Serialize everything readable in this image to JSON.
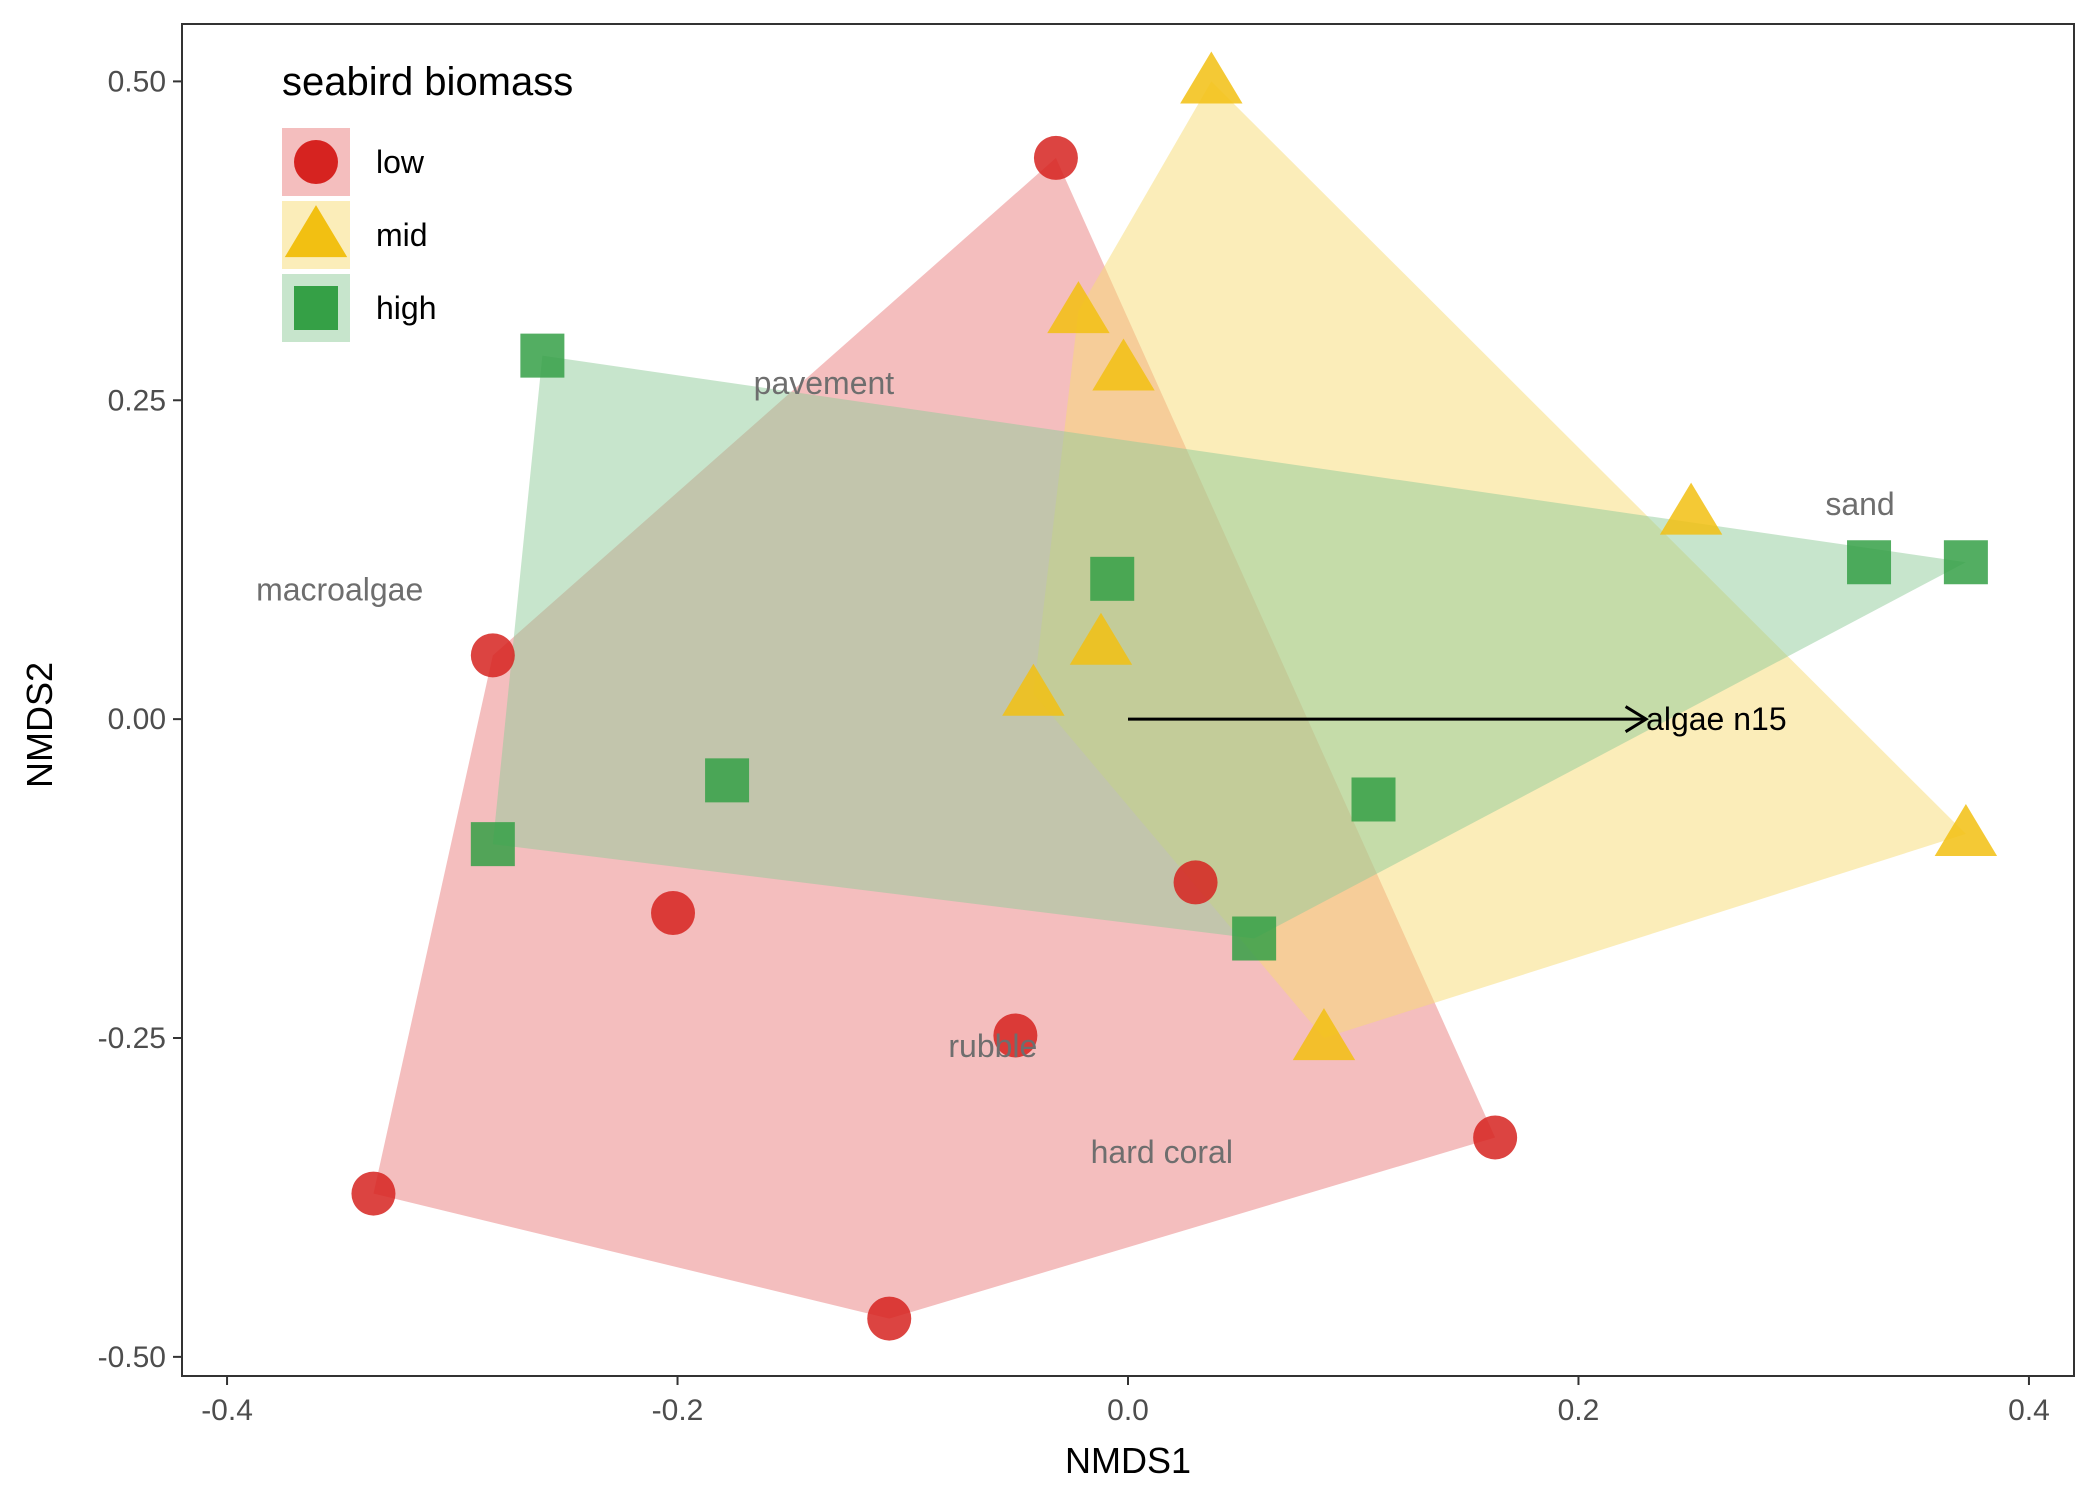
{
  "chart_data": {
    "type": "scatter",
    "title": "",
    "xlabel": "NMDS1",
    "ylabel": "NMDS2",
    "xlim": [
      -0.42,
      0.42
    ],
    "ylim": [
      -0.515,
      0.545
    ],
    "x_ticks": [
      -0.4,
      -0.2,
      0.0,
      0.2,
      0.4
    ],
    "x_tick_labels": [
      "-0.4",
      "-0.2",
      "0.0",
      "0.2",
      "0.4"
    ],
    "y_ticks": [
      -0.5,
      -0.25,
      0.0,
      0.25,
      0.5
    ],
    "y_tick_labels": [
      "-0.50",
      "-0.25",
      "0.00",
      "0.25",
      "0.50"
    ],
    "grid": false,
    "legend": {
      "title": "seabird biomass",
      "position": "top-left"
    },
    "series": [
      {
        "name": "low",
        "shape": "circle",
        "color": "#d62320",
        "fill": "#e97e7e",
        "points": [
          [
            -0.032,
            0.44
          ],
          [
            -0.282,
            0.05
          ],
          [
            -0.202,
            -0.152
          ],
          [
            -0.05,
            -0.248
          ],
          [
            0.03,
            -0.128
          ],
          [
            -0.335,
            -0.372
          ],
          [
            -0.106,
            -0.47
          ],
          [
            0.163,
            -0.328
          ]
        ],
        "hull": [
          [
            -0.032,
            0.44
          ],
          [
            0.163,
            -0.328
          ],
          [
            -0.106,
            -0.47
          ],
          [
            -0.335,
            -0.372
          ],
          [
            -0.282,
            0.05
          ]
        ]
      },
      {
        "name": "mid",
        "shape": "triangle",
        "color": "#f2c012",
        "fill": "#f7dc73",
        "points": [
          [
            0.037,
            0.5
          ],
          [
            -0.022,
            0.32
          ],
          [
            -0.002,
            0.275
          ],
          [
            0.25,
            0.162
          ],
          [
            -0.012,
            0.06
          ],
          [
            -0.042,
            0.02
          ],
          [
            0.372,
            -0.09
          ],
          [
            0.087,
            -0.25
          ]
        ],
        "hull": [
          [
            0.037,
            0.5
          ],
          [
            0.372,
            -0.09
          ],
          [
            0.087,
            -0.25
          ],
          [
            -0.042,
            0.02
          ],
          [
            -0.022,
            0.32
          ]
        ]
      },
      {
        "name": "high",
        "shape": "square",
        "color": "#35a046",
        "fill": "#8fcb99",
        "points": [
          [
            -0.26,
            0.285
          ],
          [
            -0.007,
            0.11
          ],
          [
            0.329,
            0.123
          ],
          [
            0.372,
            0.123
          ],
          [
            -0.178,
            -0.048
          ],
          [
            -0.282,
            -0.098
          ],
          [
            0.109,
            -0.063
          ],
          [
            0.056,
            -0.172
          ]
        ],
        "hull": [
          [
            -0.26,
            0.285
          ],
          [
            0.372,
            0.123
          ],
          [
            0.056,
            -0.172
          ],
          [
            -0.282,
            -0.098
          ]
        ]
      }
    ],
    "species_labels": [
      {
        "text": "pavement",
        "x": -0.135,
        "y": 0.255
      },
      {
        "text": "macroalgae",
        "x": -0.35,
        "y": 0.093
      },
      {
        "text": "sand",
        "x": 0.325,
        "y": 0.16
      },
      {
        "text": "rubble",
        "x": -0.06,
        "y": -0.265
      },
      {
        "text": "hard coral",
        "x": 0.015,
        "y": -0.348
      }
    ],
    "vectors": [
      {
        "label": "algae n15",
        "x0": 0.0,
        "y0": 0.0,
        "x1": 0.23,
        "y1": 0.0
      }
    ]
  }
}
